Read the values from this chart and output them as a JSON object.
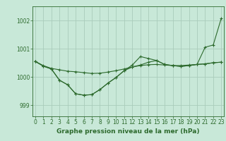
{
  "xlabel": "Graphe pression niveau de la mer (hPa)",
  "background_color": "#c8e8d8",
  "grid_color": "#b0d8c8",
  "line_color": "#2d6a2d",
  "ylim": [
    998.6,
    1002.5
  ],
  "yticks": [
    999,
    1000,
    1001,
    1002
  ],
  "xlim": [
    -0.3,
    23.3
  ],
  "xticks": [
    0,
    1,
    2,
    3,
    4,
    5,
    6,
    7,
    8,
    9,
    10,
    11,
    12,
    13,
    14,
    15,
    16,
    17,
    18,
    19,
    20,
    21,
    22,
    23
  ],
  "series1": [
    1000.55,
    1000.4,
    1000.3,
    1000.25,
    1000.2,
    1000.18,
    1000.15,
    1000.12,
    1000.13,
    1000.17,
    1000.22,
    1000.28,
    1000.35,
    1000.4,
    1000.43,
    1000.44,
    1000.42,
    1000.4,
    1000.4,
    1000.42,
    1000.44,
    1000.46,
    1000.5,
    1000.52
  ],
  "series2": [
    1000.55,
    1000.38,
    1000.28,
    999.88,
    999.72,
    999.4,
    999.35,
    999.37,
    999.55,
    999.78,
    999.98,
    1000.22,
    1000.35,
    1000.42,
    1000.52,
    1000.58,
    1000.44,
    1000.4,
    1000.37,
    1000.4,
    1000.44,
    1000.46,
    1000.5,
    1000.52
  ],
  "series3": [
    1000.55,
    1000.38,
    1000.28,
    999.88,
    999.72,
    999.4,
    999.35,
    999.37,
    999.55,
    999.78,
    999.98,
    1000.22,
    1000.42,
    1000.72,
    1000.65,
    1000.58,
    1000.44,
    1000.4,
    1000.37,
    1000.4,
    1000.44,
    1001.05,
    1001.13,
    1002.08
  ],
  "tick_fontsize": 5.5,
  "label_fontsize": 6.5
}
